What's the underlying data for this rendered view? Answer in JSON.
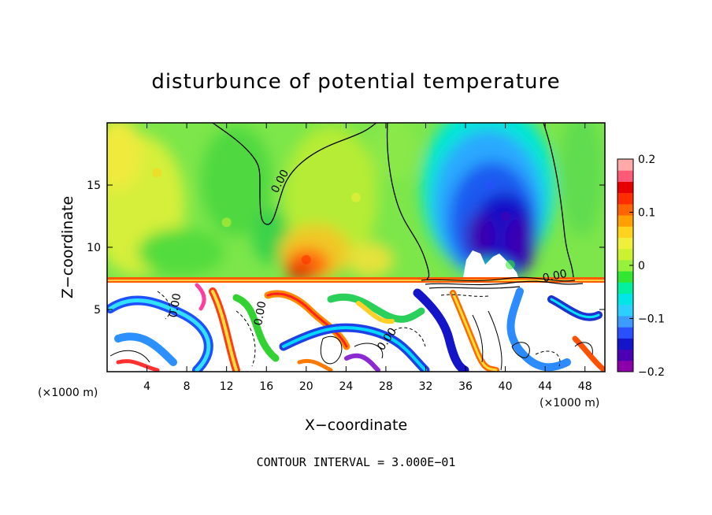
{
  "chart_data": {
    "type": "heatmap",
    "title": "disturbunce of potential temperature",
    "xlabel": "X−coordinate",
    "ylabel": "Z−coordinate",
    "x_unit": "(×1000 m)",
    "x_unit_right": "(×1000 m)",
    "xlim": [
      0,
      50
    ],
    "ylim": [
      0,
      20
    ],
    "x_ticks": [
      4,
      8,
      12,
      16,
      20,
      24,
      28,
      32,
      36,
      40,
      44,
      48
    ],
    "y_ticks": [
      5,
      10,
      15
    ],
    "colorbar": {
      "range": [
        -0.2,
        0.2
      ],
      "tick_values": [
        0.2,
        0.1,
        0,
        -0.1,
        -0.2
      ],
      "tick_labels": [
        "0.2",
        "0.1",
        "0",
        "−0.1",
        "−0.2"
      ],
      "colors": [
        "#8b00a8",
        "#4b00b4",
        "#1414c8",
        "#2850ff",
        "#3c9bff",
        "#2ccfff",
        "#00e6e6",
        "#00f0a0",
        "#32e632",
        "#96f03c",
        "#ccf032",
        "#f0f03c",
        "#ffd21e",
        "#ffa000",
        "#ff6400",
        "#ff2d00",
        "#e60000",
        "#ff5a78",
        "#ffaaaa"
      ]
    },
    "contour_labels": [
      "0.00",
      "0.00",
      "0.00",
      "0.00",
      "0.00"
    ],
    "footer": "CONTOUR INTERVAL = 3.000E−01",
    "features": [
      {
        "x": 40,
        "z": 12.5,
        "value": -0.17
      },
      {
        "x": 38.5,
        "z": 15,
        "value": -0.12
      },
      {
        "x": 20,
        "z": 9,
        "value": 0.12
      },
      {
        "x": 5,
        "z": 16,
        "value": 0.07
      },
      {
        "x": 12,
        "z": 12,
        "value": 0.03
      },
      {
        "x": 25,
        "z": 14,
        "value": 0.04
      },
      {
        "x": 40.5,
        "z": 8.6,
        "value": -0.02
      }
    ]
  }
}
